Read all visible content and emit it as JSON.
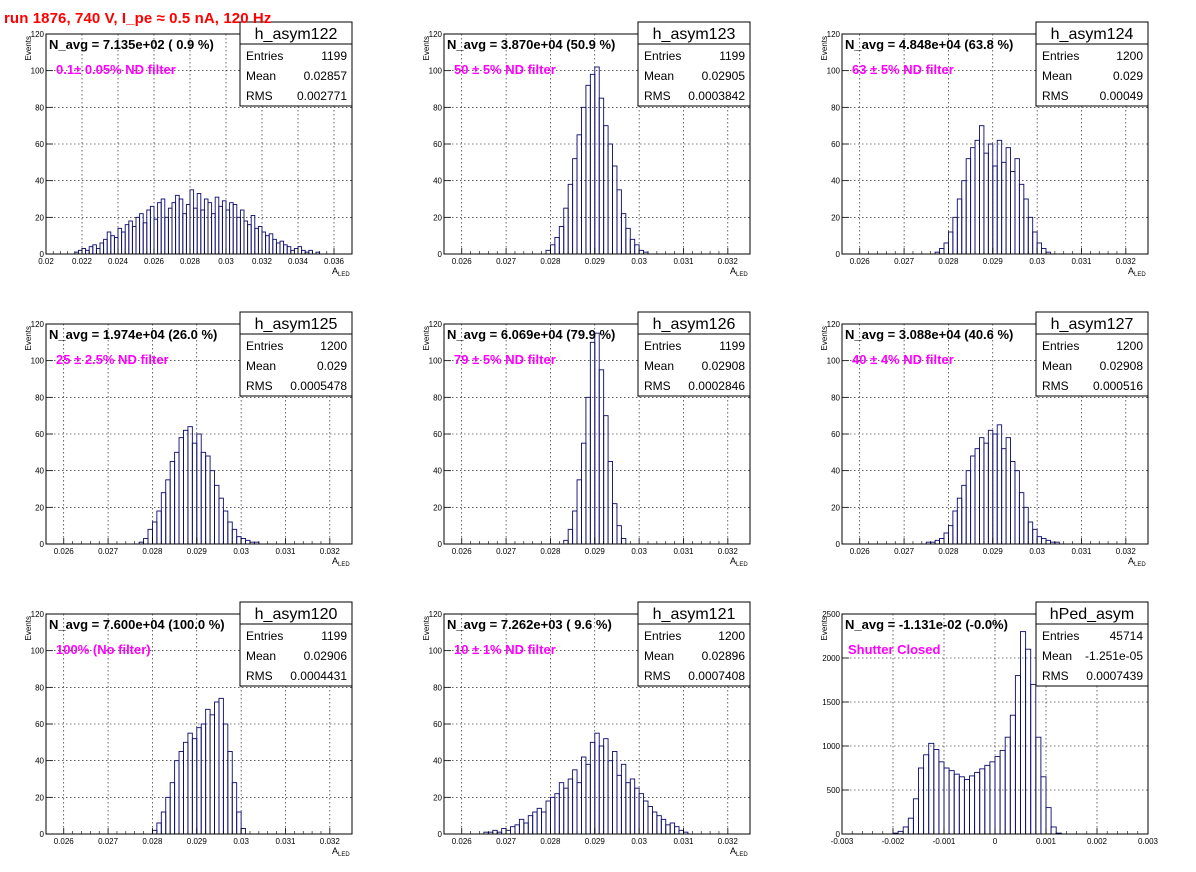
{
  "figure": {
    "title": "run 1876,   740 V, I_pe ≈ 0.5 nA, 120 Hz"
  },
  "style": {
    "line_color": "#0a0a6e",
    "annot_color": "#ff00ff",
    "title_color": "#ff0000"
  },
  "chart_data": [
    {
      "type": "bar",
      "name": "h_asym122",
      "navg": "N_avg = 7.135e+02 ( 0.9 %)",
      "filter": "0.1± 0.05% ND filter",
      "entries": "1199",
      "mean": "0.02857",
      "rms": "0.002771",
      "xlabel": "A",
      "xlabel_sub": "LED",
      "ylabel": "Events",
      "xlim": [
        0.02,
        0.037
      ],
      "ylim": [
        0,
        120
      ],
      "xticks": [
        "0.02",
        "0.022",
        "0.024",
        "0.026",
        "0.028",
        "0.03",
        "0.032",
        "0.034",
        "0.036"
      ],
      "xtick_values": [
        0.02,
        0.022,
        0.024,
        0.026,
        0.028,
        0.03,
        0.032,
        0.034,
        0.036
      ],
      "yticks": [
        "0",
        "20",
        "40",
        "60",
        "80",
        "100",
        "120"
      ],
      "ytick_values": [
        0,
        20,
        40,
        60,
        80,
        100,
        120
      ],
      "x": [
        0.0215,
        0.0217,
        0.0219,
        0.0221,
        0.0223,
        0.0225,
        0.0227,
        0.0229,
        0.0231,
        0.0233,
        0.0235,
        0.0237,
        0.0239,
        0.0241,
        0.0243,
        0.0245,
        0.0247,
        0.0249,
        0.0251,
        0.0253,
        0.0255,
        0.0257,
        0.0259,
        0.0261,
        0.0263,
        0.0265,
        0.0267,
        0.0269,
        0.0271,
        0.0273,
        0.0275,
        0.0277,
        0.0279,
        0.0281,
        0.0283,
        0.0285,
        0.0287,
        0.0289,
        0.0291,
        0.0293,
        0.0295,
        0.0297,
        0.0299,
        0.0301,
        0.0303,
        0.0305,
        0.0307,
        0.0309,
        0.0311,
        0.0313,
        0.0315,
        0.0317,
        0.0319,
        0.0321,
        0.0323,
        0.0325,
        0.0327,
        0.0329,
        0.0331,
        0.0333,
        0.0335,
        0.0337,
        0.0339,
        0.0341,
        0.0343,
        0.0345,
        0.0347,
        0.0349,
        0.0351,
        0.0353,
        0.0355
      ],
      "values": [
        0,
        1,
        2,
        3,
        2,
        4,
        5,
        3,
        6,
        8,
        12,
        10,
        9,
        14,
        12,
        16,
        18,
        15,
        20,
        22,
        17,
        24,
        26,
        19,
        28,
        30,
        20,
        25,
        28,
        32,
        30,
        22,
        27,
        35,
        25,
        33,
        24,
        30,
        28,
        22,
        31,
        26,
        29,
        24,
        28,
        27,
        20,
        24,
        18,
        16,
        21,
        14,
        15,
        12,
        10,
        11,
        8,
        6,
        7,
        5,
        4,
        2,
        3,
        4,
        2,
        1,
        2,
        0,
        1,
        0,
        0
      ]
    },
    {
      "type": "bar",
      "name": "h_asym123",
      "navg": "N_avg = 3.870e+04 (50.9 %)",
      "filter": "50 ± 5% ND filter",
      "entries": "1199",
      "mean": "0.02905",
      "rms": "0.0003842",
      "xlabel": "A",
      "xlabel_sub": "LED",
      "ylabel": "Events",
      "xlim": [
        0.0256,
        0.0325
      ],
      "ylim": [
        0,
        120
      ],
      "xticks": [
        "0.026",
        "0.027",
        "0.028",
        "0.029",
        "0.03",
        "0.031",
        "0.032"
      ],
      "xtick_values": [
        0.026,
        0.027,
        0.028,
        0.029,
        0.03,
        0.031,
        0.032
      ],
      "yticks": [
        "0",
        "20",
        "40",
        "60",
        "80",
        "100",
        "120"
      ],
      "ytick_values": [
        0,
        20,
        40,
        60,
        80,
        100,
        120
      ],
      "x": [
        0.02795,
        0.02805,
        0.02815,
        0.02825,
        0.02835,
        0.02845,
        0.02855,
        0.02865,
        0.02875,
        0.02885,
        0.02895,
        0.02905,
        0.02915,
        0.02925,
        0.02935,
        0.02945,
        0.02955,
        0.02965,
        0.02975,
        0.02985,
        0.02995,
        0.03005,
        0.03015,
        0.03025
      ],
      "values": [
        2,
        5,
        9,
        15,
        25,
        38,
        52,
        65,
        80,
        92,
        98,
        102,
        85,
        70,
        60,
        48,
        35,
        22,
        14,
        8,
        5,
        2,
        1,
        0
      ]
    },
    {
      "type": "bar",
      "name": "h_asym124",
      "navg": "N_avg = 4.848e+04 (63.8 %)",
      "filter": "63 ± 5% ND filter",
      "entries": "1200",
      "mean": "0.029",
      "rms": "0.00049",
      "xlabel": "A",
      "xlabel_sub": "LED",
      "ylabel": "Events",
      "xlim": [
        0.0256,
        0.0325
      ],
      "ylim": [
        0,
        120
      ],
      "xticks": [
        "0.026",
        "0.027",
        "0.028",
        "0.029",
        "0.03",
        "0.031",
        "0.032"
      ],
      "xtick_values": [
        0.026,
        0.027,
        0.028,
        0.029,
        0.03,
        0.031,
        0.032
      ],
      "yticks": [
        "0",
        "20",
        "40",
        "60",
        "80",
        "100",
        "120"
      ],
      "ytick_values": [
        0,
        20,
        40,
        60,
        80,
        100,
        120
      ],
      "x": [
        0.02775,
        0.02785,
        0.02795,
        0.02805,
        0.02815,
        0.02825,
        0.02835,
        0.02845,
        0.02855,
        0.02865,
        0.02875,
        0.02885,
        0.02895,
        0.02905,
        0.02915,
        0.02925,
        0.02935,
        0.02945,
        0.02955,
        0.02965,
        0.02975,
        0.02985,
        0.02995,
        0.03005,
        0.03015,
        0.03025
      ],
      "values": [
        1,
        3,
        6,
        12,
        20,
        30,
        40,
        52,
        58,
        62,
        70,
        55,
        60,
        48,
        62,
        50,
        58,
        45,
        52,
        38,
        30,
        20,
        12,
        6,
        3,
        1
      ]
    },
    {
      "type": "bar",
      "name": "h_asym125",
      "navg": "N_avg = 1.974e+04 (26.0 %)",
      "filter": "25 ± 2.5% ND filter",
      "entries": "1200",
      "mean": "0.029",
      "rms": "0.0005478",
      "xlabel": "A",
      "xlabel_sub": "LED",
      "ylabel": "Events",
      "xlim": [
        0.0256,
        0.0325
      ],
      "ylim": [
        0,
        120
      ],
      "xticks": [
        "0.026",
        "0.027",
        "0.028",
        "0.029",
        "0.03",
        "0.031",
        "0.032"
      ],
      "xtick_values": [
        0.026,
        0.027,
        0.028,
        0.029,
        0.03,
        0.031,
        0.032
      ],
      "yticks": [
        "0",
        "20",
        "40",
        "60",
        "80",
        "100",
        "120"
      ],
      "ytick_values": [
        0,
        20,
        40,
        60,
        80,
        100,
        120
      ],
      "x": [
        0.02775,
        0.02785,
        0.02795,
        0.02805,
        0.02815,
        0.02825,
        0.02835,
        0.02845,
        0.02855,
        0.02865,
        0.02875,
        0.02885,
        0.02895,
        0.02905,
        0.02915,
        0.02925,
        0.02935,
        0.02945,
        0.02955,
        0.02965,
        0.02975,
        0.02985,
        0.02995,
        0.03005,
        0.03015,
        0.03025,
        0.03035,
        0.03045,
        0.03055
      ],
      "values": [
        1,
        3,
        8,
        12,
        18,
        28,
        35,
        45,
        50,
        58,
        62,
        64,
        55,
        60,
        50,
        48,
        40,
        32,
        25,
        18,
        12,
        8,
        4,
        3,
        2,
        1,
        1,
        0,
        0
      ]
    },
    {
      "type": "bar",
      "name": "h_asym126",
      "navg": "N_avg = 6.069e+04 (79.9 %)",
      "filter": "79 ± 5% ND filter",
      "entries": "1199",
      "mean": "0.02908",
      "rms": "0.0002846",
      "xlabel": "A",
      "xlabel_sub": "LED",
      "ylabel": "Events",
      "xlim": [
        0.0256,
        0.0325
      ],
      "ylim": [
        0,
        120
      ],
      "xticks": [
        "0.026",
        "0.027",
        "0.028",
        "0.029",
        "0.03",
        "0.031",
        "0.032"
      ],
      "xtick_values": [
        0.026,
        0.027,
        0.028,
        0.029,
        0.03,
        0.031,
        0.032
      ],
      "yticks": [
        "0",
        "20",
        "40",
        "60",
        "80",
        "100",
        "120"
      ],
      "ytick_values": [
        0,
        20,
        40,
        60,
        80,
        100,
        120
      ],
      "x": [
        0.02835,
        0.02845,
        0.02855,
        0.02865,
        0.02875,
        0.02885,
        0.02895,
        0.02905,
        0.02915,
        0.02925,
        0.02935,
        0.02945,
        0.02955,
        0.02965
      ],
      "values": [
        2,
        8,
        18,
        35,
        55,
        80,
        110,
        115,
        95,
        70,
        45,
        22,
        10,
        3
      ]
    },
    {
      "type": "bar",
      "name": "h_asym127",
      "navg": "N_avg = 3.088e+04 (40.6 %)",
      "filter": "40 ± 4% ND filter",
      "entries": "1200",
      "mean": "0.02908",
      "rms": "0.000516",
      "xlabel": "A",
      "xlabel_sub": "LED",
      "ylabel": "Events",
      "xlim": [
        0.0256,
        0.0325
      ],
      "ylim": [
        0,
        120
      ],
      "xticks": [
        "0.026",
        "0.027",
        "0.028",
        "0.029",
        "0.03",
        "0.031",
        "0.032"
      ],
      "xtick_values": [
        0.026,
        0.027,
        0.028,
        0.029,
        0.03,
        0.031,
        0.032
      ],
      "yticks": [
        "0",
        "20",
        "40",
        "60",
        "80",
        "100",
        "120"
      ],
      "ytick_values": [
        0,
        20,
        40,
        60,
        80,
        100,
        120
      ],
      "x": [
        0.02755,
        0.02765,
        0.02775,
        0.02785,
        0.02795,
        0.02805,
        0.02815,
        0.02825,
        0.02835,
        0.02845,
        0.02855,
        0.02865,
        0.02875,
        0.02885,
        0.02895,
        0.02905,
        0.02915,
        0.02925,
        0.02935,
        0.02945,
        0.02955,
        0.02965,
        0.02975,
        0.02985,
        0.02995,
        0.03005,
        0.03015,
        0.03025,
        0.03035,
        0.03045,
        0.03055
      ],
      "values": [
        1,
        1,
        2,
        3,
        6,
        10,
        18,
        25,
        32,
        40,
        48,
        52,
        58,
        55,
        62,
        60,
        65,
        52,
        58,
        45,
        40,
        28,
        20,
        12,
        8,
        4,
        3,
        2,
        1,
        1,
        0
      ]
    },
    {
      "type": "bar",
      "name": "h_asym120",
      "navg": "N_avg = 7.600e+04 (100.0 %)",
      "filter": "100% (No filter)",
      "entries": "1199",
      "mean": "0.02906",
      "rms": "0.0004431",
      "xlabel": "A",
      "xlabel_sub": "LED",
      "ylabel": "Events",
      "xlim": [
        0.0256,
        0.0325
      ],
      "ylim": [
        0,
        120
      ],
      "xticks": [
        "0.026",
        "0.027",
        "0.028",
        "0.029",
        "0.03",
        "0.031",
        "0.032"
      ],
      "xtick_values": [
        0.026,
        0.027,
        0.028,
        0.029,
        0.03,
        0.031,
        0.032
      ],
      "yticks": [
        "0",
        "20",
        "40",
        "60",
        "80",
        "100",
        "120"
      ],
      "ytick_values": [
        0,
        20,
        40,
        60,
        80,
        100,
        120
      ],
      "x": [
        0.02805,
        0.02815,
        0.02825,
        0.02835,
        0.02845,
        0.02855,
        0.02865,
        0.02875,
        0.02885,
        0.02895,
        0.02905,
        0.02915,
        0.02925,
        0.02935,
        0.02945,
        0.02955,
        0.02965,
        0.02975,
        0.02985,
        0.02995,
        0.03005
      ],
      "values": [
        2,
        6,
        12,
        20,
        28,
        40,
        45,
        50,
        55,
        52,
        58,
        60,
        68,
        65,
        72,
        74,
        60,
        45,
        28,
        12,
        3
      ]
    },
    {
      "type": "bar",
      "name": "h_asym121",
      "navg": "N_avg = 7.262e+03 ( 9.6 %)",
      "filter": "10 ± 1% ND filter",
      "entries": "1200",
      "mean": "0.02896",
      "rms": "0.0007408",
      "xlabel": "A",
      "xlabel_sub": "LED",
      "ylabel": "Events",
      "xlim": [
        0.0256,
        0.0325
      ],
      "ylim": [
        0,
        120
      ],
      "xticks": [
        "0.026",
        "0.027",
        "0.028",
        "0.029",
        "0.03",
        "0.031",
        "0.032"
      ],
      "xtick_values": [
        0.026,
        0.027,
        0.028,
        0.029,
        0.03,
        0.031,
        0.032
      ],
      "yticks": [
        "0",
        "20",
        "40",
        "60",
        "80",
        "100",
        "120"
      ],
      "ytick_values": [
        0,
        20,
        40,
        60,
        80,
        100,
        120
      ],
      "x": [
        0.02645,
        0.02655,
        0.02665,
        0.02675,
        0.02685,
        0.02695,
        0.02705,
        0.02715,
        0.02725,
        0.02735,
        0.02745,
        0.02755,
        0.02765,
        0.02775,
        0.02785,
        0.02795,
        0.02805,
        0.02815,
        0.02825,
        0.02835,
        0.02845,
        0.02855,
        0.02865,
        0.02875,
        0.02885,
        0.02895,
        0.02905,
        0.02915,
        0.02925,
        0.02935,
        0.02945,
        0.02955,
        0.02965,
        0.02975,
        0.02985,
        0.02995,
        0.03005,
        0.03015,
        0.03025,
        0.03035,
        0.03045,
        0.03055,
        0.03065,
        0.03075,
        0.03085,
        0.03095,
        0.03105,
        0.03115
      ],
      "values": [
        0,
        1,
        1,
        2,
        1,
        3,
        2,
        4,
        5,
        8,
        6,
        10,
        12,
        14,
        12,
        18,
        20,
        22,
        28,
        25,
        30,
        35,
        28,
        42,
        38,
        50,
        55,
        48,
        52,
        40,
        45,
        32,
        38,
        28,
        30,
        25,
        22,
        18,
        15,
        12,
        10,
        8,
        5,
        6,
        4,
        2,
        1,
        0
      ]
    },
    {
      "type": "bar",
      "name": "hPed_asym",
      "navg": "N_avg = -1.131e-02 (-0.0%)",
      "filter": "Shutter Closed",
      "entries": "45714",
      "mean": "-1.251e-05",
      "rms": "0.0007439",
      "xlabel": "",
      "xlabel_sub": "",
      "ylabel": "Events",
      "xlim": [
        -0.003,
        0.003
      ],
      "ylim": [
        0,
        2500
      ],
      "xticks": [
        "-0.003",
        "-0.002",
        "-0.001",
        "0",
        "0.001",
        "0.002",
        "0.003"
      ],
      "xtick_values": [
        -0.003,
        -0.002,
        -0.001,
        0,
        0.001,
        0.002,
        0.003
      ],
      "yticks": [
        "0",
        "500",
        "1000",
        "1500",
        "2000",
        "2500"
      ],
      "ytick_values": [
        0,
        500,
        1000,
        1500,
        2000,
        2500
      ],
      "x": [
        -0.00195,
        -0.00185,
        -0.00175,
        -0.00165,
        -0.00155,
        -0.00145,
        -0.00135,
        -0.00125,
        -0.00115,
        -0.00105,
        -0.00095,
        -0.00085,
        -0.00075,
        -0.00065,
        -0.00055,
        -0.00045,
        -0.00035,
        -0.00025,
        -0.00015,
        -5e-05,
        5e-05,
        0.00015,
        0.00025,
        0.00035,
        0.00045,
        0.00055,
        0.00065,
        0.00075,
        0.00085,
        0.00095,
        0.00105,
        0.00115,
        0.00125
      ],
      "values": [
        10,
        30,
        80,
        180,
        400,
        750,
        900,
        1030,
        960,
        820,
        750,
        720,
        680,
        650,
        620,
        660,
        700,
        740,
        780,
        820,
        880,
        950,
        1100,
        1350,
        1800,
        2300,
        2100,
        1700,
        1100,
        650,
        300,
        80,
        10
      ]
    }
  ]
}
